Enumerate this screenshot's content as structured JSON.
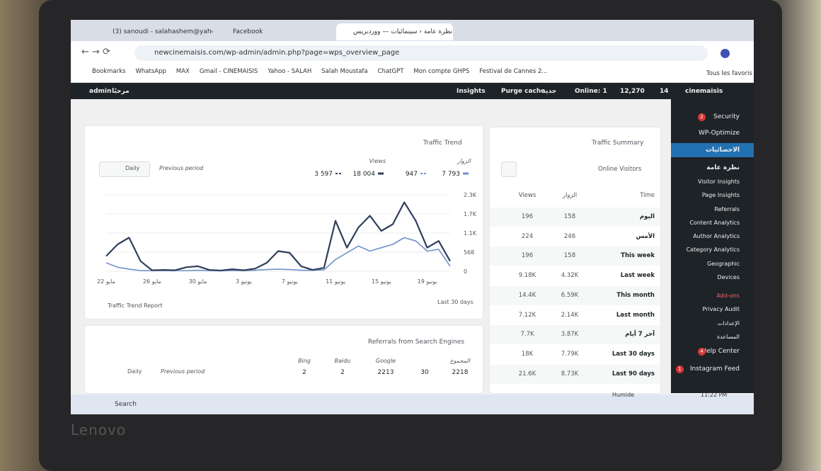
{
  "browser": {
    "tabs": [
      "(3) sanoudi - salahashem@yaho",
      "Facebook",
      "نظرة عامة ‹ سينمائيات — ووردبريس"
    ],
    "url": "newcinemaisis.com/wp-admin/admin.php?page=wps_overview_page",
    "bookmarks": [
      "Bookmarks",
      "WhatsApp",
      "MAX",
      "Gmail - CINEMAISIS",
      "Yahoo - SALAH",
      "Salah Moustafa",
      "ChatGPT",
      "Mon compte GHPS",
      "Festival de Cannes 2..."
    ],
    "all_bookmarks": "Tous les favoris"
  },
  "admin_bar": {
    "user": "admin",
    "greeting": "مرحبًا",
    "insights": "Insights",
    "purge": "Purge cache",
    "new": "جديد",
    "online": "Online: 1",
    "comments": "12,270",
    "updates": "14",
    "site": "cinemaisis"
  },
  "traffic_trend": {
    "title": "Traffic Trend",
    "period": "Daily",
    "compare": "Previous period",
    "report_link": "Traffic Trend Report",
    "range": "Last 30 days"
  },
  "chart_data": {
    "type": "line",
    "categories": [
      "22 مايو",
      null,
      null,
      null,
      "26 مايو",
      null,
      null,
      null,
      "30 مايو",
      null,
      null,
      null,
      "3 يونيو",
      null,
      null,
      null,
      "7 يونيو",
      null,
      null,
      null,
      "11 يونيو",
      null,
      null,
      null,
      "15 يونيو",
      null,
      null,
      null,
      "19 يونيو",
      null,
      null
    ],
    "series": [
      {
        "name": "الزوار",
        "color": "#6f92c9",
        "previous": "947",
        "total": "7 793",
        "values": [
          250,
          120,
          60,
          20,
          20,
          20,
          20,
          20,
          30,
          20,
          20,
          20,
          20,
          30,
          50,
          60,
          50,
          30,
          30,
          40,
          350,
          550,
          750,
          600,
          700,
          800,
          1000,
          900,
          600,
          650,
          150
        ]
      },
      {
        "name": "Views",
        "color": "#2f3e5c",
        "previous": "3 597",
        "total": "18 004",
        "values": [
          450,
          800,
          1000,
          300,
          30,
          40,
          30,
          120,
          150,
          40,
          20,
          60,
          30,
          80,
          250,
          600,
          550,
          150,
          40,
          100,
          1500,
          700,
          1300,
          1650,
          1200,
          1400,
          2050,
          1500,
          700,
          900,
          300
        ]
      }
    ],
    "ylim": [
      0,
      2272
    ],
    "yticks": [
      0,
      568,
      {
        "value": 1136,
        "label": "1.1K"
      },
      {
        "value": 1704,
        "label": "1.7K"
      },
      {
        "value": 2272,
        "label": "2.3K"
      }
    ]
  },
  "traffic_summary": {
    "title": "Traffic Summary",
    "selector": "Online Visitors",
    "headers": [
      "Time",
      "الزوار",
      "Views"
    ],
    "rows": [
      [
        "اليوم",
        "158",
        "196"
      ],
      [
        "الأمس",
        "246",
        "224"
      ],
      [
        "This week",
        "158",
        "196"
      ],
      [
        "Last week",
        "4.32K",
        "9.18K"
      ],
      [
        "This month",
        "6.59K",
        "14.4K"
      ],
      [
        "Last month",
        "2.14K",
        "7.12K"
      ],
      [
        "آخر 7 أيام",
        "3.87K",
        "7.7K"
      ],
      [
        "Last 30 days",
        "7.79K",
        "18K"
      ],
      [
        "Last 90 days",
        "8.73K",
        "21.6K"
      ]
    ]
  },
  "referrals": {
    "title": "Referrals from Search Engines",
    "period": "Daily",
    "compare": "Previous period",
    "engines": [
      {
        "name": "Bing",
        "value": "2"
      },
      {
        "name": "Baidu",
        "value": "2"
      },
      {
        "name": "Google",
        "value": "2213"
      },
      {
        "name": "المجموع",
        "previous": "30",
        "value": "2218"
      }
    ]
  },
  "sidebar": {
    "items": [
      {
        "label": "Security",
        "badge": "2"
      },
      {
        "label": "WP-Optimize"
      },
      {
        "label": "الاحصائيات"
      },
      {
        "label": "نظرة عامة"
      },
      {
        "label": "Visitor Insights"
      },
      {
        "label": "Page Insights"
      },
      {
        "label": "Referrals"
      },
      {
        "label": "Content Analytics"
      },
      {
        "label": "Author Analytics"
      },
      {
        "label": "Category Analytics"
      },
      {
        "label": "Geographic"
      },
      {
        "label": "Devices"
      },
      {
        "label": "Add-ons"
      },
      {
        "label": "Privacy Audit"
      },
      {
        "label": "الإعدادات"
      },
      {
        "label": "المساعدة"
      },
      {
        "label": "Help Center",
        "badge": "4"
      },
      {
        "label": "Instagram Feed",
        "badge": "1"
      }
    ]
  },
  "taskbar": {
    "search": "Search",
    "weather": "Humide",
    "time": "11:22 PM"
  },
  "laptop": {
    "brand": "Lenovo"
  }
}
